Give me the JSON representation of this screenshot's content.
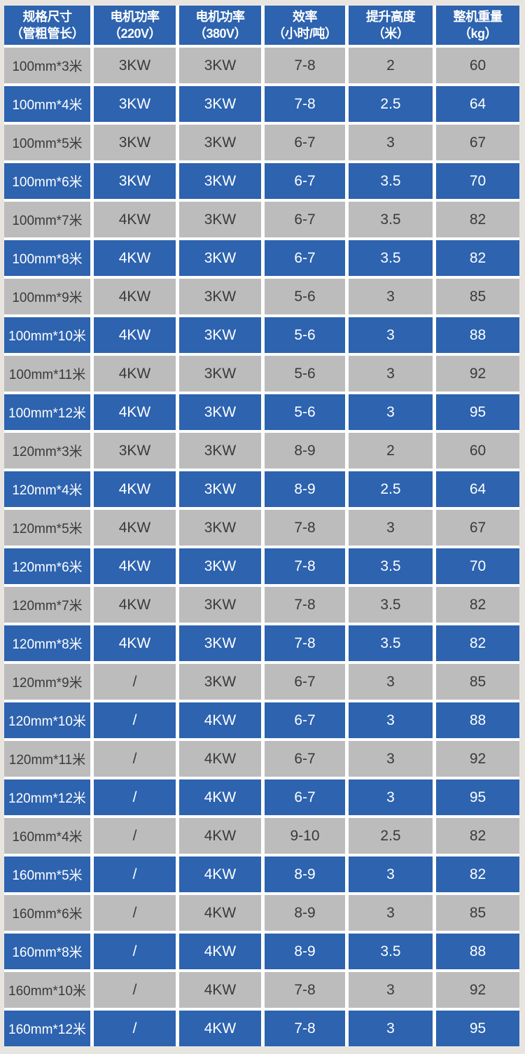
{
  "page": {
    "background_color": "#e8e5e1"
  },
  "colors": {
    "header_bg": "#2d63af",
    "row_blue_bg": "#2d63af",
    "row_gray_bg": "#bcbcbc",
    "grid_gap": "#ffffff",
    "text_dark": "#3a3a3a",
    "text_white": "#ffffff"
  },
  "chart_data": {
    "type": "table",
    "title": "",
    "legend": "none",
    "row_striping": "alternating starting gray: rows 1,3,5,... gray; rows 2,4,6,... blue",
    "columns": [
      {
        "title": "规格尺寸",
        "subtitle": "（管粗管长）"
      },
      {
        "title": "电机功率",
        "subtitle": "（220V）"
      },
      {
        "title": "电机功率",
        "subtitle": "（380V）"
      },
      {
        "title": "效率",
        "subtitle": "（小时/吨）"
      },
      {
        "title": "提升高度",
        "subtitle": "（米）"
      },
      {
        "title": "整机重量",
        "subtitle": "（kg）"
      }
    ],
    "rows": [
      [
        "100mm*3米",
        "3KW",
        "3KW",
        "7-8",
        "2",
        "60"
      ],
      [
        "100mm*4米",
        "3KW",
        "3KW",
        "7-8",
        "2.5",
        "64"
      ],
      [
        "100mm*5米",
        "3KW",
        "3KW",
        "6-7",
        "3",
        "67"
      ],
      [
        "100mm*6米",
        "3KW",
        "3KW",
        "6-7",
        "3.5",
        "70"
      ],
      [
        "100mm*7米",
        "4KW",
        "3KW",
        "6-7",
        "3.5",
        "82"
      ],
      [
        "100mm*8米",
        "4KW",
        "3KW",
        "6-7",
        "3.5",
        "82"
      ],
      [
        "100mm*9米",
        "4KW",
        "3KW",
        "5-6",
        "3",
        "85"
      ],
      [
        "100mm*10米",
        "4KW",
        "3KW",
        "5-6",
        "3",
        "88"
      ],
      [
        "100mm*11米",
        "4KW",
        "3KW",
        "5-6",
        "3",
        "92"
      ],
      [
        "100mm*12米",
        "4KW",
        "3KW",
        "5-6",
        "3",
        "95"
      ],
      [
        "120mm*3米",
        "3KW",
        "3KW",
        "8-9",
        "2",
        "60"
      ],
      [
        "120mm*4米",
        "4KW",
        "3KW",
        "8-9",
        "2.5",
        "64"
      ],
      [
        "120mm*5米",
        "4KW",
        "3KW",
        "7-8",
        "3",
        "67"
      ],
      [
        "120mm*6米",
        "4KW",
        "3KW",
        "7-8",
        "3.5",
        "70"
      ],
      [
        "120mm*7米",
        "4KW",
        "3KW",
        "7-8",
        "3.5",
        "82"
      ],
      [
        "120mm*8米",
        "4KW",
        "3KW",
        "7-8",
        "3.5",
        "82"
      ],
      [
        "120mm*9米",
        "/",
        "3KW",
        "6-7",
        "3",
        "85"
      ],
      [
        "120mm*10米",
        "/",
        "4KW",
        "6-7",
        "3",
        "88"
      ],
      [
        "120mm*11米",
        "/",
        "4KW",
        "6-7",
        "3",
        "92"
      ],
      [
        "120mm*12米",
        "/",
        "4KW",
        "6-7",
        "3",
        "95"
      ],
      [
        "160mm*4米",
        "/",
        "4KW",
        "9-10",
        "2.5",
        "82"
      ],
      [
        "160mm*5米",
        "/",
        "4KW",
        "8-9",
        "3",
        "82"
      ],
      [
        "160mm*6米",
        "/",
        "4KW",
        "8-9",
        "3",
        "85"
      ],
      [
        "160mm*8米",
        "/",
        "4KW",
        "8-9",
        "3.5",
        "88"
      ],
      [
        "160mm*10米",
        "/",
        "4KW",
        "7-8",
        "3",
        "92"
      ],
      [
        "160mm*12米",
        "/",
        "4KW",
        "7-8",
        "3",
        "95"
      ]
    ]
  }
}
